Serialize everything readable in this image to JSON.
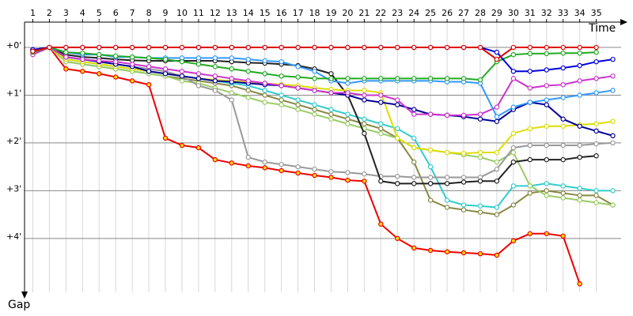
{
  "chart_data": {
    "type": "line",
    "x_label": "Time",
    "y_label": "Gap",
    "x": [
      1,
      2,
      3,
      4,
      5,
      6,
      7,
      8,
      9,
      10,
      11,
      12,
      13,
      14,
      15,
      16,
      17,
      18,
      19,
      20,
      21,
      22,
      23,
      24,
      25,
      26,
      27,
      28,
      29,
      30,
      31,
      32,
      33,
      34,
      35,
      36
    ],
    "xlim": [
      0.5,
      36.5
    ],
    "xticks": [
      1,
      2,
      3,
      4,
      5,
      6,
      7,
      8,
      9,
      10,
      11,
      12,
      13,
      14,
      15,
      16,
      17,
      18,
      19,
      20,
      21,
      22,
      23,
      24,
      25,
      26,
      27,
      28,
      29,
      30,
      31,
      32,
      33,
      34,
      35
    ],
    "ylim": [
      -0.53,
      5.26
    ],
    "yticks": [
      {
        "value": 0,
        "label": "+0'"
      },
      {
        "value": 1,
        "label": "+1'"
      },
      {
        "value": 2,
        "label": "+2'"
      },
      {
        "value": 3,
        "label": "+3'"
      },
      {
        "value": 4,
        "label": "+4'"
      }
    ],
    "y_inverted": true,
    "grid": true,
    "series": [
      {
        "color": "#ee0000",
        "marker_fill": "#ffdd00",
        "values": [
          0.05,
          0,
          0.45,
          0.5,
          0.55,
          0.62,
          0.7,
          0.78,
          1.9,
          2.05,
          2.1,
          2.35,
          2.42,
          2.48,
          2.52,
          2.58,
          2.63,
          2.68,
          2.72,
          2.78,
          2.8,
          3.7,
          4.0,
          4.2,
          4.25,
          4.28,
          4.3,
          4.32,
          4.35,
          4.05,
          3.9,
          3.9,
          3.95,
          4.95,
          null,
          null
        ]
      },
      {
        "color": "#888844",
        "marker_fill": "#ffffff",
        "values": [
          0.1,
          0,
          0.3,
          0.35,
          0.4,
          0.45,
          0.5,
          0.55,
          0.6,
          0.65,
          0.7,
          0.75,
          0.8,
          0.9,
          1,
          1.1,
          1.2,
          1.3,
          1.4,
          1.5,
          1.6,
          1.7,
          1.9,
          2.4,
          3.2,
          3.35,
          3.4,
          3.45,
          3.5,
          3.3,
          3.05,
          3,
          3.05,
          3.1,
          3.1,
          3.3
        ]
      },
      {
        "color": "#33cccc",
        "marker_fill": "#ffffff",
        "values": [
          0.1,
          0,
          0.25,
          0.3,
          0.35,
          0.4,
          0.45,
          0.5,
          0.55,
          0.6,
          0.65,
          0.7,
          0.75,
          0.8,
          0.9,
          1,
          1.1,
          1.2,
          1.3,
          1.4,
          1.5,
          1.6,
          1.7,
          1.9,
          2.5,
          3.2,
          3.3,
          3.32,
          3.35,
          2.9,
          2.9,
          2.85,
          2.9,
          2.95,
          3,
          3
        ]
      },
      {
        "color": "#99cc66",
        "marker_fill": "#ffffff",
        "values": [
          0.1,
          0,
          0.3,
          0.35,
          0.4,
          0.45,
          0.5,
          0.55,
          0.6,
          0.7,
          0.75,
          0.85,
          0.95,
          1.05,
          1.15,
          1.2,
          1.3,
          1.4,
          1.5,
          1.6,
          1.7,
          1.8,
          1.9,
          2.1,
          2.15,
          2.2,
          2.25,
          2.3,
          2.4,
          2.2,
          2.9,
          3.1,
          3.15,
          3.2,
          3.25,
          3.3
        ]
      },
      {
        "color": "#999999",
        "marker_fill": "#ffffff",
        "values": [
          0.1,
          0,
          0.2,
          0.25,
          0.3,
          0.35,
          0.4,
          0.45,
          0.5,
          0.6,
          0.8,
          0.9,
          1.1,
          2.3,
          2.4,
          2.45,
          2.5,
          2.55,
          2.6,
          2.62,
          2.65,
          2.7,
          2.7,
          2.72,
          2.72,
          2.72,
          2.72,
          2.72,
          2.55,
          2.1,
          2.05,
          2.05,
          2.05,
          2.05,
          2.02,
          2
        ]
      },
      {
        "color": "#222222",
        "marker_fill": "#ffffff",
        "values": [
          0.05,
          0,
          0.15,
          0.2,
          0.22,
          0.25,
          0.27,
          0.28,
          0.28,
          0.28,
          0.28,
          0.28,
          0.3,
          0.32,
          0.33,
          0.35,
          0.38,
          0.45,
          0.55,
          1,
          1.8,
          2.8,
          2.85,
          2.85,
          2.85,
          2.85,
          2.82,
          2.8,
          2.8,
          2.4,
          2.35,
          2.35,
          2.35,
          2.3,
          2.27,
          null
        ]
      },
      {
        "color": "#dddd00",
        "marker_fill": "#ffffff",
        "values": [
          0.1,
          0,
          0.25,
          0.3,
          0.35,
          0.4,
          0.45,
          0.5,
          0.55,
          0.6,
          0.65,
          0.68,
          0.7,
          0.72,
          0.75,
          0.78,
          0.8,
          0.85,
          0.88,
          0.9,
          0.9,
          0.95,
          1.9,
          2.1,
          2.15,
          2.2,
          2.22,
          2.2,
          2.2,
          1.8,
          1.7,
          1.65,
          1.65,
          1.62,
          1.6,
          1.55
        ]
      },
      {
        "color": "#000099",
        "marker_fill": "#ffffff",
        "values": [
          0.05,
          0,
          0.2,
          0.25,
          0.3,
          0.35,
          0.4,
          0.5,
          0.55,
          0.6,
          0.65,
          0.7,
          0.72,
          0.75,
          0.78,
          0.8,
          0.85,
          0.9,
          0.95,
          1,
          1.1,
          1.15,
          1.2,
          1.3,
          1.4,
          1.42,
          1.45,
          1.5,
          1.55,
          1.3,
          1.15,
          1.2,
          1.5,
          1.65,
          1.75,
          1.85
        ]
      },
      {
        "color": "#cc33cc",
        "marker_fill": "#ffffff",
        "values": [
          0.15,
          0,
          0.2,
          0.25,
          0.28,
          0.3,
          0.35,
          0.4,
          0.45,
          0.5,
          0.55,
          0.6,
          0.65,
          0.7,
          0.75,
          0.8,
          0.85,
          0.9,
          0.95,
          0.95,
          1,
          1,
          1.1,
          1.4,
          1.4,
          1.42,
          1.42,
          1.4,
          1.25,
          0.65,
          0.85,
          0.8,
          0.78,
          0.7,
          0.65,
          0.6
        ]
      },
      {
        "color": "#3399ff",
        "marker_fill": "#ffffff",
        "values": [
          0.05,
          0,
          0.1,
          0.15,
          0.15,
          0.2,
          0.2,
          0.22,
          0.22,
          0.22,
          0.22,
          0.22,
          0.22,
          0.25,
          0.28,
          0.3,
          0.4,
          0.5,
          0.7,
          0.75,
          0.7,
          0.7,
          0.7,
          0.7,
          0.7,
          0.72,
          0.72,
          0.75,
          1.45,
          1.25,
          1.15,
          1.1,
          1.05,
          1,
          0.95,
          0.9
        ]
      },
      {
        "color": "#22aa22",
        "marker_fill": "#ffffff",
        "values": [
          0.1,
          0,
          0.1,
          0.12,
          0.15,
          0.18,
          0.2,
          0.22,
          0.25,
          0.3,
          0.35,
          0.4,
          0.45,
          0.5,
          0.55,
          0.6,
          0.62,
          0.65,
          0.65,
          0.65,
          0.65,
          0.65,
          0.65,
          0.65,
          0.65,
          0.65,
          0.65,
          0.68,
          0.3,
          0.15,
          0.13,
          0.13,
          0.12,
          0.12,
          0.1,
          null
        ]
      },
      {
        "color": "#0000dd",
        "marker_fill": "#ffffff",
        "values": [
          0.05,
          0,
          0,
          0,
          0,
          0,
          0,
          0,
          0,
          0,
          0,
          0,
          0,
          0,
          0,
          0,
          0,
          0,
          0,
          0,
          0,
          0,
          0,
          0,
          0,
          0,
          0,
          0,
          0.1,
          0.5,
          0.5,
          0.47,
          0.43,
          0.38,
          0.3,
          0.25
        ]
      },
      {
        "color": "#e00000",
        "marker_fill": "#ffffff",
        "values": [
          0.08,
          0,
          0,
          0,
          0,
          0,
          0,
          0,
          0,
          0,
          0,
          0,
          0,
          0,
          0,
          0,
          0,
          0,
          0,
          0,
          0,
          0,
          0,
          0,
          0,
          0,
          0,
          0,
          0.25,
          0,
          0,
          0,
          0,
          0,
          0,
          null
        ]
      }
    ]
  }
}
